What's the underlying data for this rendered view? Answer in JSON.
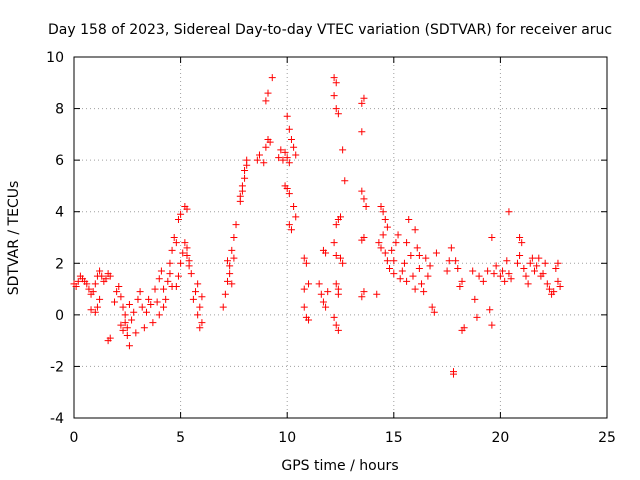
{
  "chart_data": {
    "type": "scatter",
    "title": "Day 158 of 2023, Sidereal Day-to-day VTEC variation (SDTVAR) for receiver aruc",
    "xlabel": "GPS time / hours",
    "ylabel": "SDTVAR / TECUs",
    "xlim": [
      0,
      25
    ],
    "ylim": [
      -4,
      10
    ],
    "x_ticks": [
      0,
      5,
      10,
      15,
      20,
      25
    ],
    "y_ticks": [
      -4,
      -2,
      0,
      2,
      4,
      6,
      8,
      10
    ],
    "x_tick_labels": [
      "0",
      "5",
      "10",
      "15",
      "20",
      "25"
    ],
    "y_tick_labels": [
      "-4",
      "-2",
      "0",
      "2",
      "4",
      "6",
      "8",
      "10"
    ],
    "grid": true,
    "marker": "+",
    "color": "#ff0000",
    "series": [
      {
        "name": "SDTVAR",
        "points": [
          [
            0.0,
            1.2
          ],
          [
            0.1,
            1.1
          ],
          [
            0.2,
            1.3
          ],
          [
            0.3,
            1.5
          ],
          [
            0.4,
            1.4
          ],
          [
            0.5,
            1.3
          ],
          [
            0.6,
            1.2
          ],
          [
            0.7,
            1.0
          ],
          [
            0.8,
            0.8
          ],
          [
            0.9,
            0.9
          ],
          [
            1.0,
            1.2
          ],
          [
            1.1,
            1.5
          ],
          [
            1.2,
            1.7
          ],
          [
            1.3,
            1.5
          ],
          [
            1.4,
            1.3
          ],
          [
            1.5,
            1.4
          ],
          [
            1.6,
            1.6
          ],
          [
            1.7,
            1.5
          ],
          [
            1.2,
            0.6
          ],
          [
            1.1,
            0.3
          ],
          [
            1.0,
            0.1
          ],
          [
            0.8,
            0.2
          ],
          [
            1.6,
            -1.0
          ],
          [
            1.7,
            -0.9
          ],
          [
            1.9,
            0.5
          ],
          [
            2.0,
            0.9
          ],
          [
            2.1,
            1.1
          ],
          [
            2.2,
            0.7
          ],
          [
            2.3,
            0.3
          ],
          [
            2.4,
            -0.3
          ],
          [
            2.5,
            -0.8
          ],
          [
            2.6,
            -1.2
          ],
          [
            2.5,
            -0.5
          ],
          [
            2.4,
            0.0
          ],
          [
            2.6,
            0.4
          ],
          [
            2.7,
            -0.2
          ],
          [
            2.3,
            -0.6
          ],
          [
            2.2,
            -0.4
          ],
          [
            2.8,
            0.1
          ],
          [
            2.9,
            -0.7
          ],
          [
            3.0,
            0.6
          ],
          [
            3.1,
            0.9
          ],
          [
            3.2,
            0.3
          ],
          [
            3.3,
            -0.5
          ],
          [
            3.4,
            0.1
          ],
          [
            3.5,
            0.6
          ],
          [
            3.6,
            0.4
          ],
          [
            3.7,
            -0.3
          ],
          [
            3.8,
            1.0
          ],
          [
            3.9,
            0.5
          ],
          [
            4.0,
            1.4
          ],
          [
            4.1,
            1.7
          ],
          [
            4.2,
            1.0
          ],
          [
            4.3,
            0.6
          ],
          [
            4.4,
            1.3
          ],
          [
            4.5,
            2.0
          ],
          [
            4.6,
            2.5
          ],
          [
            4.7,
            3.0
          ],
          [
            4.8,
            2.8
          ],
          [
            4.5,
            1.6
          ],
          [
            4.6,
            1.1
          ],
          [
            4.2,
            0.3
          ],
          [
            4.0,
            0.0
          ],
          [
            4.9,
            3.7
          ],
          [
            5.0,
            3.9
          ],
          [
            5.1,
            2.4
          ],
          [
            5.2,
            2.8
          ],
          [
            5.0,
            2.0
          ],
          [
            4.9,
            1.5
          ],
          [
            4.8,
            1.1
          ],
          [
            5.2,
            4.2
          ],
          [
            5.3,
            4.1
          ],
          [
            5.3,
            2.6
          ],
          [
            5.4,
            2.1
          ],
          [
            5.5,
            1.6
          ],
          [
            5.4,
            1.9
          ],
          [
            5.3,
            2.3
          ],
          [
            5.6,
            0.6
          ],
          [
            5.7,
            0.9
          ],
          [
            5.8,
            1.2
          ],
          [
            5.8,
            0.0
          ],
          [
            5.9,
            -0.5
          ],
          [
            6.0,
            -0.3
          ],
          [
            5.9,
            0.3
          ],
          [
            6.0,
            0.7
          ],
          [
            7.0,
            0.3
          ],
          [
            7.1,
            0.8
          ],
          [
            7.2,
            1.3
          ],
          [
            7.3,
            1.9
          ],
          [
            7.4,
            2.5
          ],
          [
            7.5,
            3.0
          ],
          [
            7.6,
            3.5
          ],
          [
            7.3,
            1.6
          ],
          [
            7.2,
            2.1
          ],
          [
            7.4,
            1.2
          ],
          [
            7.5,
            2.2
          ],
          [
            7.8,
            4.4
          ],
          [
            7.9,
            5.0
          ],
          [
            8.0,
            5.6
          ],
          [
            8.1,
            6.0
          ],
          [
            7.9,
            4.8
          ],
          [
            8.0,
            5.3
          ],
          [
            8.1,
            5.8
          ],
          [
            7.8,
            4.6
          ],
          [
            8.6,
            6.0
          ],
          [
            8.7,
            6.2
          ],
          [
            8.9,
            5.9
          ],
          [
            9.0,
            6.5
          ],
          [
            9.2,
            6.7
          ],
          [
            9.1,
            6.8
          ],
          [
            9.0,
            8.3
          ],
          [
            9.1,
            8.6
          ],
          [
            9.3,
            9.2
          ],
          [
            9.6,
            6.1
          ],
          [
            9.7,
            6.4
          ],
          [
            9.8,
            6.0
          ],
          [
            9.9,
            6.3
          ],
          [
            10.0,
            6.1
          ],
          [
            10.1,
            5.9
          ],
          [
            9.9,
            5.0
          ],
          [
            10.0,
            4.9
          ],
          [
            10.1,
            4.7
          ],
          [
            10.1,
            7.2
          ],
          [
            10.2,
            6.8
          ],
          [
            10.3,
            6.5
          ],
          [
            10.4,
            6.2
          ],
          [
            10.0,
            7.7
          ],
          [
            10.3,
            4.2
          ],
          [
            10.4,
            3.8
          ],
          [
            10.2,
            3.3
          ],
          [
            10.1,
            3.5
          ],
          [
            10.8,
            2.2
          ],
          [
            10.9,
            2.0
          ],
          [
            11.0,
            1.2
          ],
          [
            10.8,
            0.3
          ],
          [
            10.9,
            -0.1
          ],
          [
            11.0,
            -0.2
          ],
          [
            10.8,
            1.0
          ],
          [
            11.5,
            1.2
          ],
          [
            11.6,
            0.8
          ],
          [
            11.7,
            0.5
          ],
          [
            11.8,
            0.3
          ],
          [
            11.9,
            0.9
          ],
          [
            11.7,
            2.5
          ],
          [
            11.8,
            2.4
          ],
          [
            12.2,
            9.2
          ],
          [
            12.3,
            9.0
          ],
          [
            12.3,
            8.0
          ],
          [
            12.4,
            7.8
          ],
          [
            12.2,
            8.5
          ],
          [
            12.3,
            3.5
          ],
          [
            12.4,
            3.7
          ],
          [
            12.5,
            3.8
          ],
          [
            12.2,
            2.8
          ],
          [
            12.3,
            2.3
          ],
          [
            12.5,
            2.2
          ],
          [
            12.6,
            2.0
          ],
          [
            12.3,
            1.2
          ],
          [
            12.4,
            1.0
          ],
          [
            12.4,
            0.8
          ],
          [
            12.2,
            -0.1
          ],
          [
            12.3,
            -0.4
          ],
          [
            12.4,
            -0.6
          ],
          [
            12.6,
            6.4
          ],
          [
            12.7,
            5.2
          ],
          [
            13.5,
            8.2
          ],
          [
            13.5,
            7.1
          ],
          [
            13.6,
            8.4
          ],
          [
            13.5,
            4.8
          ],
          [
            13.6,
            4.5
          ],
          [
            13.7,
            4.2
          ],
          [
            13.6,
            3.0
          ],
          [
            13.5,
            2.9
          ],
          [
            13.6,
            0.9
          ],
          [
            13.5,
            0.7
          ],
          [
            14.2,
            0.8
          ],
          [
            14.3,
            2.8
          ],
          [
            14.4,
            2.6
          ],
          [
            14.5,
            3.1
          ],
          [
            14.4,
            4.2
          ],
          [
            14.5,
            4.0
          ],
          [
            14.6,
            3.7
          ],
          [
            14.7,
            3.4
          ],
          [
            14.6,
            2.4
          ],
          [
            14.7,
            2.1
          ],
          [
            14.8,
            1.8
          ],
          [
            14.9,
            2.5
          ],
          [
            15.0,
            2.1
          ],
          [
            15.1,
            2.8
          ],
          [
            15.2,
            3.1
          ],
          [
            15.0,
            1.6
          ],
          [
            15.3,
            1.4
          ],
          [
            15.4,
            1.7
          ],
          [
            15.5,
            2.0
          ],
          [
            15.6,
            1.3
          ],
          [
            15.7,
            3.7
          ],
          [
            15.6,
            2.8
          ],
          [
            15.8,
            2.3
          ],
          [
            15.9,
            1.5
          ],
          [
            16.0,
            1.0
          ],
          [
            16.1,
            2.6
          ],
          [
            16.2,
            1.8
          ],
          [
            16.3,
            1.2
          ],
          [
            16.4,
            0.9
          ],
          [
            16.5,
            2.2
          ],
          [
            16.6,
            1.5
          ],
          [
            16.7,
            1.9
          ],
          [
            16.8,
            0.3
          ],
          [
            16.9,
            0.1
          ],
          [
            17.0,
            2.4
          ],
          [
            16.0,
            3.3
          ],
          [
            16.2,
            2.3
          ],
          [
            17.5,
            1.7
          ],
          [
            17.6,
            2.1
          ],
          [
            17.7,
            2.6
          ],
          [
            17.8,
            -2.2
          ],
          [
            17.8,
            -2.3
          ],
          [
            17.9,
            2.1
          ],
          [
            18.0,
            1.8
          ],
          [
            18.1,
            1.1
          ],
          [
            18.2,
            1.3
          ],
          [
            18.3,
            -0.5
          ],
          [
            18.2,
            -0.6
          ],
          [
            18.7,
            1.7
          ],
          [
            18.8,
            0.6
          ],
          [
            18.9,
            -0.1
          ],
          [
            19.0,
            1.5
          ],
          [
            19.2,
            1.3
          ],
          [
            19.4,
            1.7
          ],
          [
            19.5,
            0.2
          ],
          [
            19.6,
            -0.4
          ],
          [
            19.6,
            3.0
          ],
          [
            19.7,
            1.6
          ],
          [
            19.8,
            1.9
          ],
          [
            20.0,
            1.5
          ],
          [
            20.1,
            1.7
          ],
          [
            20.2,
            1.3
          ],
          [
            20.3,
            2.1
          ],
          [
            20.4,
            1.6
          ],
          [
            20.5,
            1.4
          ],
          [
            20.4,
            4.0
          ],
          [
            20.8,
            2.0
          ],
          [
            20.9,
            2.3
          ],
          [
            21.0,
            2.8
          ],
          [
            20.9,
            3.0
          ],
          [
            21.1,
            1.8
          ],
          [
            21.2,
            1.5
          ],
          [
            21.3,
            1.2
          ],
          [
            21.4,
            2.0
          ],
          [
            21.5,
            2.2
          ],
          [
            21.6,
            1.7
          ],
          [
            21.7,
            1.9
          ],
          [
            21.8,
            2.2
          ],
          [
            21.9,
            1.5
          ],
          [
            22.0,
            1.6
          ],
          [
            22.1,
            2.0
          ],
          [
            22.2,
            1.2
          ],
          [
            22.3,
            1.0
          ],
          [
            22.4,
            0.8
          ],
          [
            22.5,
            0.9
          ],
          [
            22.6,
            1.8
          ],
          [
            22.7,
            1.3
          ],
          [
            22.8,
            1.1
          ],
          [
            22.7,
            2.0
          ]
        ]
      }
    ]
  }
}
